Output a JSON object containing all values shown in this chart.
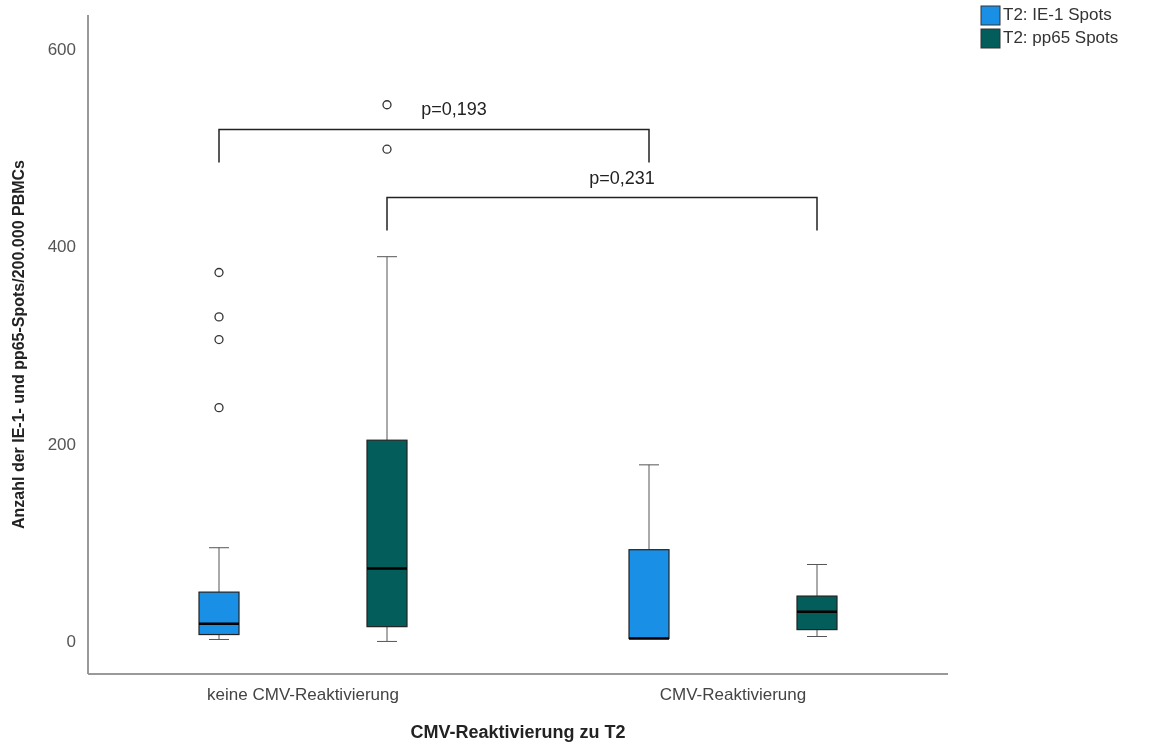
{
  "chart_data": {
    "type": "box",
    "xlabel": "CMV-Reaktivierung zu T2",
    "ylabel": "Anzahl der IE-1- und pp65-Spots/200.000 PBMCs",
    "categories": [
      "keine CMV-Reaktivierung",
      "CMV-Reaktivierung"
    ],
    "series": [
      {
        "name": "T2: IE-1 Spots",
        "color": "#1a8fe6",
        "boxes": [
          {
            "low": 3,
            "q1": 8,
            "median": 19,
            "q3": 51,
            "high": 96,
            "outliers": [
              238,
              307,
              330,
              375
            ]
          },
          {
            "low": 4,
            "q1": 4,
            "median": 4,
            "q3": 94,
            "high": 180
          }
        ]
      },
      {
        "name": "T2: pp65 Spots",
        "color": "#035d5a",
        "boxes": [
          {
            "low": 1,
            "q1": 16,
            "median": 75,
            "q3": 205,
            "high": 391,
            "outliers": [
              500,
              545
            ]
          },
          {
            "low": 6,
            "q1": 13,
            "median": 31,
            "q3": 47,
            "high": 79
          }
        ]
      }
    ],
    "ylim": [
      -32,
      636
    ],
    "yticks": [
      0,
      200,
      400,
      600
    ],
    "legend": "top right",
    "annotations": [
      "p=0,193",
      "p=0,231"
    ]
  }
}
